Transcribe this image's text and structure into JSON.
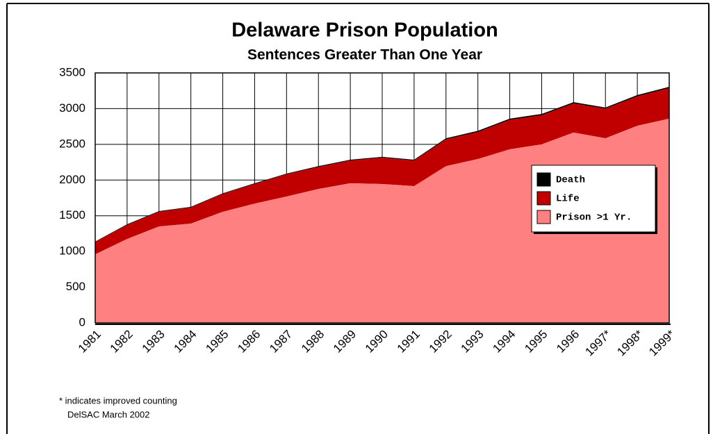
{
  "chart_data": {
    "type": "stacked_area",
    "title": "Delaware Prison Population",
    "subtitle": "Sentences Greater Than One Year",
    "categories": [
      "1981",
      "1982",
      "1983",
      "1984",
      "1985",
      "1986",
      "1987",
      "1988",
      "1989",
      "1990",
      "1991",
      "1992",
      "1993",
      "1994",
      "1995",
      "1996",
      "1997*",
      "1998*",
      "1999*"
    ],
    "series": [
      {
        "name": "Death",
        "color": "#000000",
        "values": [
          5,
          10,
          10,
          10,
          10,
          10,
          10,
          12,
          12,
          12,
          12,
          15,
          18,
          18,
          18,
          18,
          16,
          18,
          18
        ]
      },
      {
        "name": "Life",
        "color": "#c00000",
        "values": [
          175,
          195,
          205,
          225,
          250,
          275,
          310,
          308,
          318,
          368,
          358,
          375,
          377,
          412,
          407,
          407,
          414,
          412,
          427
        ]
      },
      {
        "name": "Prison >1 Yr.",
        "color": "#ff8080",
        "values": [
          960,
          1175,
          1350,
          1390,
          1555,
          1670,
          1770,
          1875,
          1955,
          1945,
          1915,
          2195,
          2295,
          2430,
          2500,
          2665,
          2585,
          2760,
          2860
        ]
      }
    ],
    "ylim": [
      0,
      3500
    ],
    "yticks": [
      0,
      500,
      1000,
      1500,
      2000,
      2500,
      3000,
      3500
    ],
    "grid": true,
    "legend": "right",
    "annotations": [
      "* indicates improved counting",
      "DelSAC March 2002"
    ]
  }
}
